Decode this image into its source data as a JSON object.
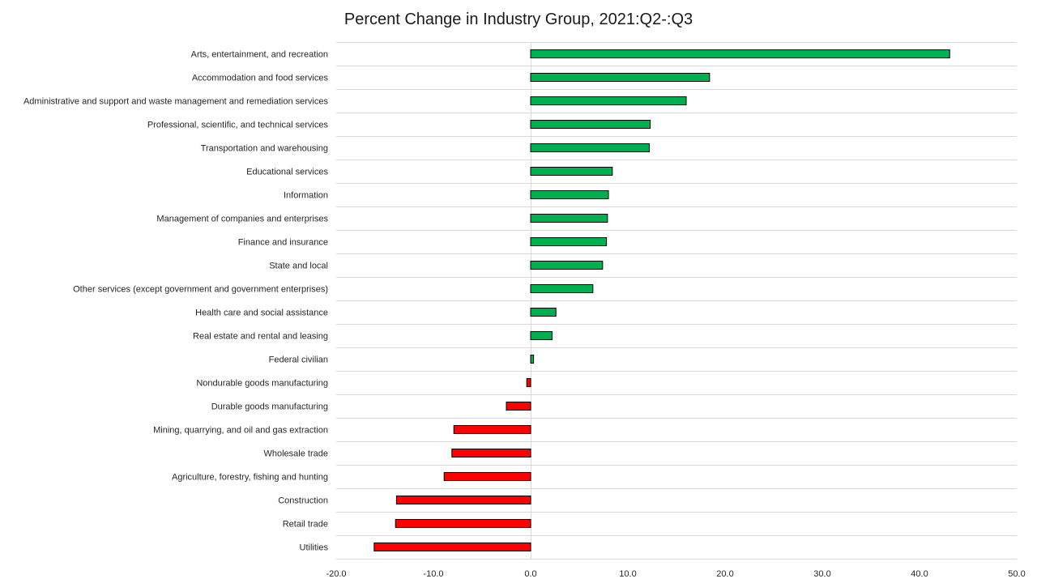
{
  "chart_data": {
    "type": "bar",
    "orientation": "horizontal",
    "title": "Percent Change in Industry Group, 2021:Q2-:Q3",
    "xlabel": "",
    "ylabel": "",
    "xlim": [
      -20,
      50
    ],
    "x_ticks": [
      "-20.0",
      "-10.0",
      "0.0",
      "10.0",
      "20.0",
      "30.0",
      "40.0",
      "50.0"
    ],
    "grid": true,
    "legend": "none",
    "colors": {
      "positive": "#00b050",
      "negative": "#ff0000"
    },
    "categories": [
      "Arts, entertainment, and recreation",
      "Accommodation and food services",
      "Administrative and support and waste management and remediation services",
      "Professional, scientific, and technical services",
      "Transportation and warehousing",
      "Educational services",
      "Information",
      "Management of companies and enterprises",
      "Finance and insurance",
      "State and local",
      "Other services (except government and government enterprises)",
      "Health care and social assistance",
      "Real estate and rental and leasing",
      "Federal civilian",
      "Nondurable goods manufacturing",
      "Durable goods manufacturing",
      "Mining, quarrying, and oil and gas extraction",
      "Wholesale trade",
      "Agriculture, forestry, fishing and hunting",
      "Construction",
      "Retail trade",
      "Utilities"
    ],
    "values": [
      43.1,
      18.4,
      16.0,
      12.3,
      12.2,
      8.4,
      8.0,
      7.9,
      7.8,
      7.4,
      6.4,
      2.6,
      2.2,
      0.3,
      -0.4,
      -2.5,
      -7.9,
      -8.1,
      -8.9,
      -13.8,
      -13.9,
      -16.1
    ]
  }
}
